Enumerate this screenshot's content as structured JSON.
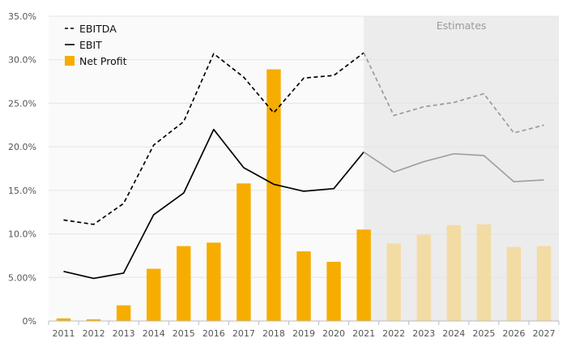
{
  "chart_data": {
    "type": "bar",
    "title": "",
    "xlabel": "",
    "ylabel": "",
    "ylim": [
      0,
      35
    ],
    "y_ticks": [
      "0%",
      "5.00%",
      "10.0%",
      "15.0%",
      "20.0%",
      "25.0%",
      "30.0%",
      "35.0%"
    ],
    "categories": [
      "2011",
      "2012",
      "2013",
      "2014",
      "2015",
      "2016",
      "2017",
      "2018",
      "2019",
      "2020",
      "2021",
      "2022",
      "2023",
      "2024",
      "2025",
      "2026",
      "2027"
    ],
    "estimates_label": "Estimates",
    "estimates_from": "2022",
    "grid": true,
    "legend_position": "top-left",
    "series": [
      {
        "name": "EBITDA",
        "kind": "line",
        "style": "dashed",
        "color": "#000000",
        "estimate_color": "#9a9a9a",
        "values": [
          11.6,
          11.1,
          13.5,
          20.2,
          22.9,
          30.7,
          28.0,
          23.9,
          27.9,
          28.2,
          30.8,
          23.6,
          24.6,
          25.1,
          26.1,
          21.6,
          22.5
        ]
      },
      {
        "name": "EBIT",
        "kind": "line",
        "style": "solid",
        "color": "#000000",
        "estimate_color": "#a0a0a0",
        "values": [
          5.7,
          4.9,
          5.5,
          12.2,
          14.7,
          22.0,
          17.6,
          15.7,
          14.9,
          15.2,
          19.4,
          17.1,
          18.3,
          19.2,
          19.0,
          16.0,
          16.2
        ]
      },
      {
        "name": "Net Profit",
        "kind": "bar",
        "color": "#f7ad00",
        "estimate_color": "#f3dba4",
        "values": [
          0.3,
          0.2,
          1.8,
          6.0,
          8.6,
          9.0,
          15.8,
          28.9,
          8.0,
          6.8,
          10.5,
          8.9,
          9.9,
          11.0,
          11.1,
          8.5,
          8.6
        ]
      }
    ]
  }
}
